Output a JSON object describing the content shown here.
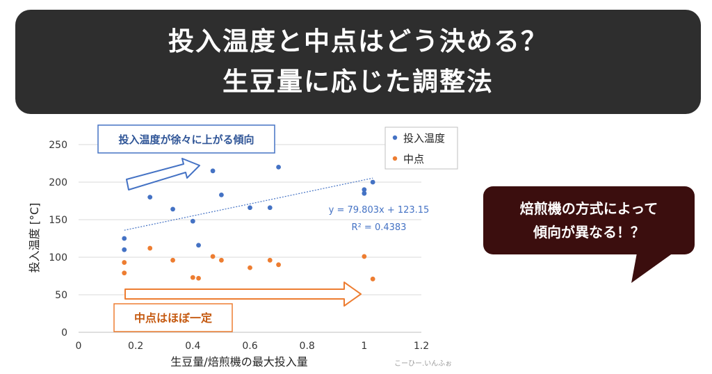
{
  "banner": {
    "line1": "投入温度と中点はどう決める？",
    "line2": "生豆量に応じた調整法"
  },
  "callout": {
    "line1": "焙煎機の方式によって",
    "line2": "傾向が異なる！？"
  },
  "credit": "こーひー.いんふぉ",
  "colors": {
    "banner_bg": "#2e2e2e",
    "callout_bg": "#3b0e0e",
    "series_blue": "#4472c4",
    "series_orange": "#ed7d31",
    "trend_text": "#4472c4"
  },
  "chart_data": {
    "type": "scatter",
    "xlabel": "生豆量/焙煎機の最大投入量",
    "ylabel": "投入温度 [°C]",
    "xlim": [
      0,
      1.2
    ],
    "ylim": [
      0,
      250
    ],
    "x_ticks": [
      "0",
      "0.2",
      "0.4",
      "0.6",
      "0.8",
      "1",
      "1.2"
    ],
    "y_ticks": [
      "0",
      "50",
      "100",
      "150",
      "200",
      "250"
    ],
    "grid": "horizontal",
    "legend_position": "top-right",
    "series": [
      {
        "name": "投入温度",
        "color": "#4472c4",
        "points": [
          [
            0.16,
            125
          ],
          [
            0.16,
            110
          ],
          [
            0.25,
            180
          ],
          [
            0.33,
            164
          ],
          [
            0.4,
            148
          ],
          [
            0.42,
            116
          ],
          [
            0.47,
            215
          ],
          [
            0.5,
            183
          ],
          [
            0.6,
            166
          ],
          [
            0.67,
            166
          ],
          [
            0.7,
            220
          ],
          [
            1.0,
            190
          ],
          [
            1.0,
            185
          ],
          [
            1.03,
            200
          ]
        ]
      },
      {
        "name": "中点",
        "color": "#ed7d31",
        "points": [
          [
            0.16,
            93
          ],
          [
            0.16,
            79
          ],
          [
            0.25,
            112
          ],
          [
            0.33,
            96
          ],
          [
            0.4,
            73
          ],
          [
            0.42,
            72
          ],
          [
            0.47,
            101
          ],
          [
            0.5,
            96
          ],
          [
            0.6,
            86
          ],
          [
            0.67,
            96
          ],
          [
            0.7,
            90
          ],
          [
            1.0,
            101
          ],
          [
            1.03,
            71
          ]
        ]
      }
    ],
    "trendline": {
      "series": "投入温度",
      "slope": 79.803,
      "intercept": 123.15,
      "x_range": [
        0.16,
        1.03
      ],
      "equation": "y = 79.803x + 123.15",
      "r2": "R² = 0.4383"
    },
    "annotations": {
      "blue_label": "投入温度が徐々に上がる傾向",
      "orange_label": "中点はほぼ一定"
    }
  }
}
